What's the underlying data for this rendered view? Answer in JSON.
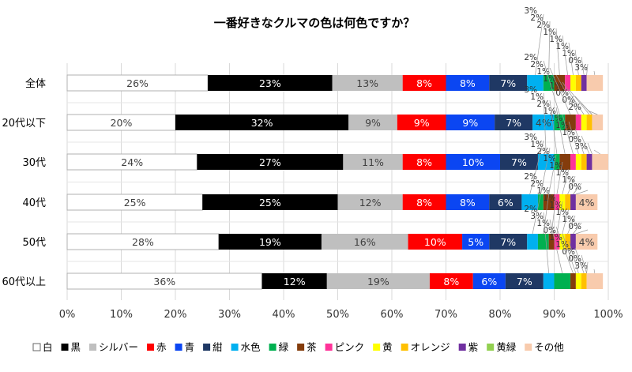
{
  "chart_data": {
    "type": "bar",
    "orientation": "horizontal",
    "stacked": true,
    "title": "一番好きなクルマの色は何色ですか？",
    "categories": [
      "全体",
      "20代以下",
      "30代",
      "40代",
      "50代",
      "60代以上"
    ],
    "xlim": [
      0,
      100
    ],
    "x_ticks": [
      "0%",
      "10%",
      "20%",
      "30%",
      "40%",
      "50%",
      "60%",
      "70%",
      "80%",
      "90%",
      "100%"
    ],
    "grid": "vertical",
    "legend_position": "bottom",
    "series": [
      {
        "name": "白",
        "color": "#ffffff",
        "values": [
          26,
          20,
          24,
          25,
          28,
          36
        ]
      },
      {
        "name": "黒",
        "color": "#000000",
        "values": [
          23,
          32,
          27,
          25,
          19,
          12
        ]
      },
      {
        "name": "シルバー",
        "color": "#bfbfbf",
        "values": [
          13,
          9,
          11,
          12,
          16,
          19
        ]
      },
      {
        "name": "赤",
        "color": "#ff0000",
        "values": [
          8,
          9,
          8,
          8,
          10,
          8
        ]
      },
      {
        "name": "青",
        "color": "#0b46f2",
        "values": [
          8,
          9,
          10,
          8,
          5,
          6
        ]
      },
      {
        "name": "紺",
        "color": "#1f3864",
        "values": [
          7,
          7,
          7,
          6,
          7,
          7
        ]
      },
      {
        "name": "水色",
        "color": "#00b0f0",
        "values": [
          3,
          4,
          3,
          3,
          2,
          2
        ]
      },
      {
        "name": "緑",
        "color": "#00b050",
        "values": [
          2,
          2,
          1,
          1,
          2,
          3
        ]
      },
      {
        "name": "茶",
        "color": "#843c0c",
        "values": [
          2,
          2,
          2,
          2,
          1,
          1
        ]
      },
      {
        "name": "ピンク",
        "color": "#ff3399",
        "values": [
          1,
          1,
          1,
          1,
          1,
          0
        ]
      },
      {
        "name": "黄",
        "color": "#ffff00",
        "values": [
          1,
          1,
          1,
          1,
          1,
          1
        ]
      },
      {
        "name": "オレンジ",
        "color": "#ffc000",
        "values": [
          1,
          1,
          1,
          1,
          1,
          1
        ]
      },
      {
        "name": "紫",
        "color": "#7030a0",
        "values": [
          1,
          0,
          1,
          1,
          1,
          0
        ]
      },
      {
        "name": "黄緑",
        "color": "#92d050",
        "values": [
          0,
          0,
          0,
          0,
          0,
          0
        ]
      },
      {
        "name": "その他",
        "color": "#f8cbad",
        "values": [
          3,
          2,
          3,
          4,
          4,
          3
        ]
      }
    ]
  }
}
